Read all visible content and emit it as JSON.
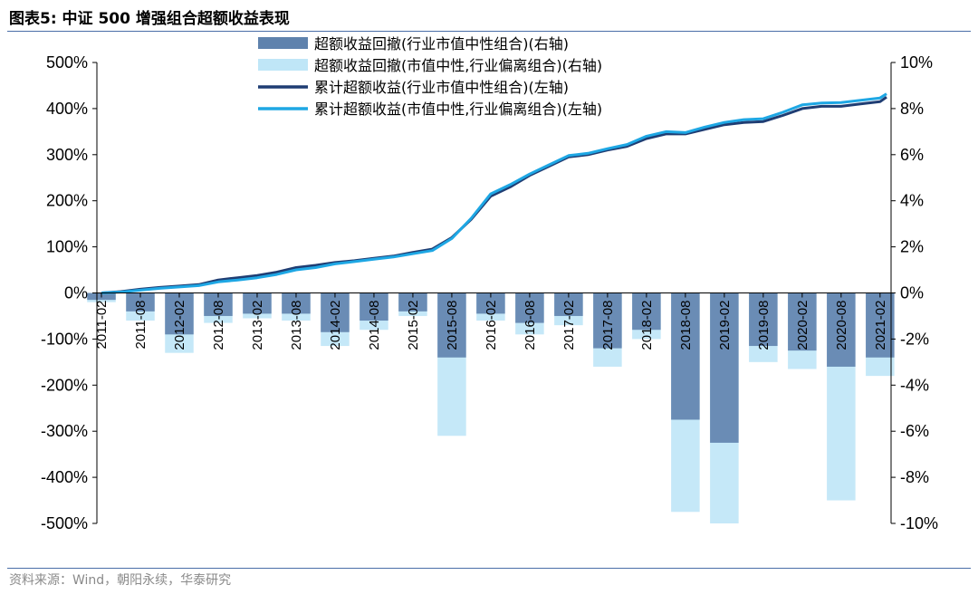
{
  "figure": {
    "title": "图表5:  中证 500 增强组合超额收益表现",
    "source": "资料来源：Wind，朝阳永续，华泰研究"
  },
  "colors": {
    "dark_line": "#1f3d73",
    "light_line": "#1ea7e4",
    "dark_bar": "#5f82ad",
    "light_bar": "#bfe6f7",
    "rule": "#4a6ea8"
  },
  "chart_data": {
    "type": "line",
    "title": "",
    "xlabel": "",
    "ylabel_left": "",
    "ylabel_right": "",
    "x_tick_labels": [
      "2011-02",
      "2011-08",
      "2012-02",
      "2012-08",
      "2013-02",
      "2013-08",
      "2014-02",
      "2014-08",
      "2015-02",
      "2015-08",
      "2016-02",
      "2016-08",
      "2017-02",
      "2017-08",
      "2018-02",
      "2018-08",
      "2019-02",
      "2019-08",
      "2020-02",
      "2020-08",
      "2021-02"
    ],
    "y_left": {
      "ticks": [
        -500,
        -400,
        -300,
        -200,
        -100,
        0,
        100,
        200,
        300,
        400,
        500
      ],
      "tick_labels": [
        "-500%",
        "-400%",
        "-300%",
        "-200%",
        "-100%",
        "0%",
        "100%",
        "200%",
        "300%",
        "400%",
        "500%"
      ],
      "ylim": [
        -500,
        500
      ],
      "unit": "%"
    },
    "y_right": {
      "ticks": [
        -10,
        -8,
        -6,
        -4,
        -2,
        0,
        2,
        4,
        6,
        8,
        10
      ],
      "tick_labels": [
        "-10%",
        "-8%",
        "-6%",
        "-4%",
        "-2%",
        "0%",
        "2%",
        "4%",
        "6%",
        "8%",
        "10%"
      ],
      "ylim": [
        -10,
        10
      ],
      "unit": "%"
    },
    "legend": {
      "placement": "top-center",
      "entries": [
        {
          "label": "超额收益回撤(行业市值中性组合)(右轴)",
          "kind": "bar",
          "color": "#5f82ad"
        },
        {
          "label": "超额收益回撤(市值中性,行业偏离组合)(右轴)",
          "kind": "bar",
          "color": "#bfe6f7"
        },
        {
          "label": "累计超额收益(行业市值中性组合)(左轴)",
          "kind": "line",
          "color": "#1f3d73"
        },
        {
          "label": "累计超额收益(市值中性,行业偏离组合)(左轴)",
          "kind": "line",
          "color": "#1ea7e4"
        }
      ]
    },
    "series": [
      {
        "name": "累计超额收益(行业市值中性组合)(左轴)",
        "axis": "left",
        "kind": "line",
        "x": [
          "2011-02",
          "2011-05",
          "2011-08",
          "2011-11",
          "2012-02",
          "2012-05",
          "2012-08",
          "2012-11",
          "2013-02",
          "2013-05",
          "2013-08",
          "2013-11",
          "2014-02",
          "2014-05",
          "2014-08",
          "2014-11",
          "2015-02",
          "2015-05",
          "2015-08",
          "2015-11",
          "2016-02",
          "2016-05",
          "2016-08",
          "2016-11",
          "2017-02",
          "2017-05",
          "2017-08",
          "2017-11",
          "2018-02",
          "2018-05",
          "2018-08",
          "2018-11",
          "2019-02",
          "2019-05",
          "2019-08",
          "2019-11",
          "2020-02",
          "2020-05",
          "2020-08",
          "2020-11",
          "2021-02",
          "2021-03"
        ],
        "y": [
          0,
          3,
          8,
          12,
          15,
          18,
          28,
          33,
          38,
          45,
          55,
          60,
          66,
          70,
          75,
          80,
          88,
          95,
          120,
          160,
          210,
          230,
          255,
          275,
          295,
          300,
          310,
          318,
          335,
          345,
          345,
          355,
          365,
          370,
          372,
          385,
          400,
          405,
          405,
          410,
          415,
          425
        ]
      },
      {
        "name": "累计超额收益(市值中性,行业偏离组合)(左轴)",
        "axis": "left",
        "kind": "line",
        "x": [
          "2011-02",
          "2011-05",
          "2011-08",
          "2011-11",
          "2012-02",
          "2012-05",
          "2012-08",
          "2012-11",
          "2013-02",
          "2013-05",
          "2013-08",
          "2013-11",
          "2014-02",
          "2014-05",
          "2014-08",
          "2014-11",
          "2015-02",
          "2015-05",
          "2015-08",
          "2015-11",
          "2016-02",
          "2016-05",
          "2016-08",
          "2016-11",
          "2017-02",
          "2017-05",
          "2017-08",
          "2017-11",
          "2018-02",
          "2018-05",
          "2018-08",
          "2018-11",
          "2019-02",
          "2019-05",
          "2019-08",
          "2019-11",
          "2020-02",
          "2020-05",
          "2020-08",
          "2020-11",
          "2021-02",
          "2021-03"
        ],
        "y": [
          0,
          2,
          6,
          10,
          13,
          16,
          24,
          28,
          33,
          40,
          50,
          55,
          63,
          68,
          73,
          78,
          85,
          92,
          118,
          162,
          215,
          235,
          258,
          278,
          298,
          303,
          313,
          322,
          340,
          350,
          348,
          360,
          370,
          376,
          378,
          392,
          408,
          412,
          413,
          418,
          423,
          432
        ]
      },
      {
        "name": "超额收益回撤(行业市值中性组合)(右轴)",
        "axis": "right",
        "kind": "bar",
        "x": [
          "2011-02",
          "2011-08",
          "2012-02",
          "2012-08",
          "2013-02",
          "2013-08",
          "2014-02",
          "2014-08",
          "2015-02",
          "2015-08",
          "2016-02",
          "2016-08",
          "2017-02",
          "2017-08",
          "2018-02",
          "2018-08",
          "2019-02",
          "2019-08",
          "2020-02",
          "2020-08",
          "2021-02"
        ],
        "y": [
          -0.3,
          -0.8,
          -1.8,
          -1.0,
          -0.9,
          -0.9,
          -1.7,
          -1.2,
          -0.8,
          -2.8,
          -0.9,
          -1.3,
          -1.0,
          -2.4,
          -1.6,
          -5.5,
          -6.5,
          -2.3,
          -2.5,
          -3.2,
          -2.8
        ]
      },
      {
        "name": "超额收益回撤(市值中性,行业偏离组合)(右轴)",
        "axis": "right",
        "kind": "bar",
        "x": [
          "2011-02",
          "2011-08",
          "2012-02",
          "2012-08",
          "2013-02",
          "2013-08",
          "2014-02",
          "2014-08",
          "2015-02",
          "2015-08",
          "2016-02",
          "2016-08",
          "2017-02",
          "2017-08",
          "2018-02",
          "2018-08",
          "2019-02",
          "2019-08",
          "2020-02",
          "2020-08",
          "2021-02"
        ],
        "y": [
          -0.4,
          -1.2,
          -2.6,
          -1.3,
          -1.1,
          -1.2,
          -2.3,
          -1.6,
          -1.0,
          -6.2,
          -1.2,
          -1.8,
          -1.4,
          -3.2,
          -2.0,
          -9.5,
          -10.0,
          -3.0,
          -3.3,
          -9.0,
          -3.6
        ]
      }
    ]
  }
}
